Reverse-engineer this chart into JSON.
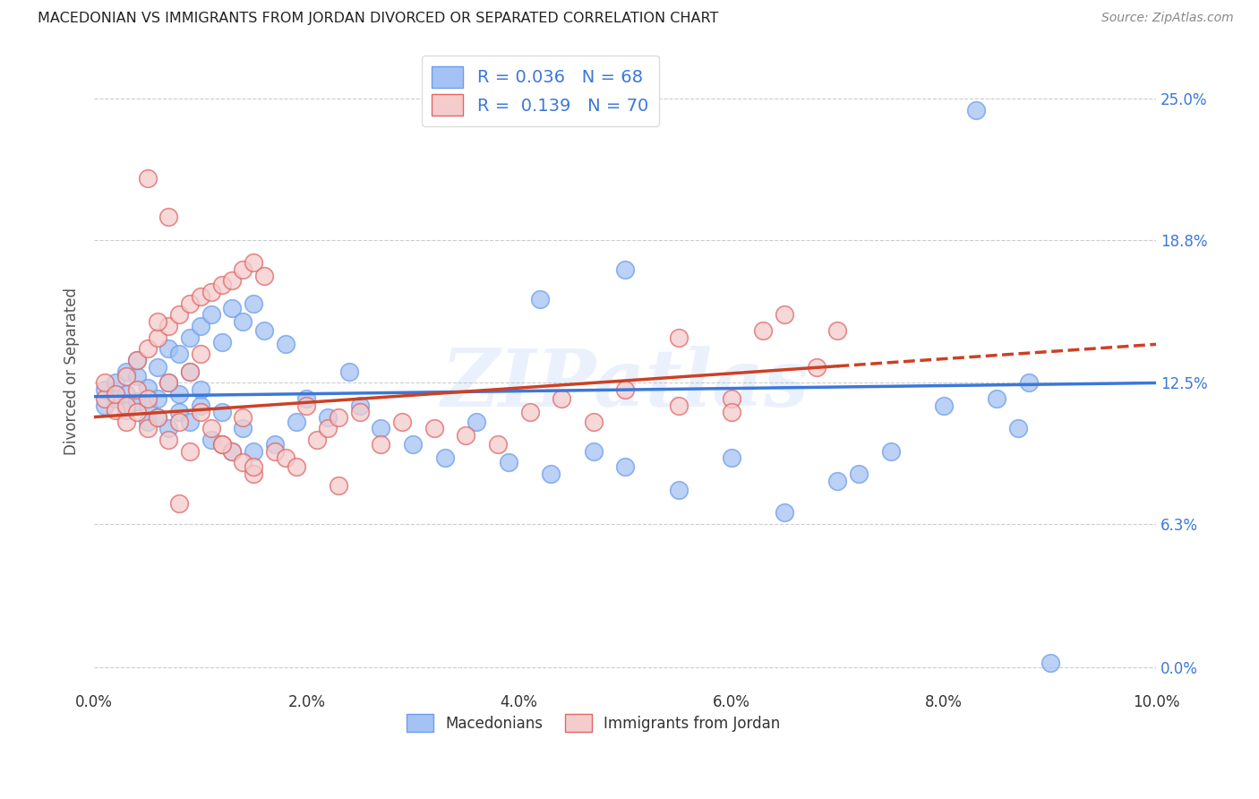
{
  "title": "MACEDONIAN VS IMMIGRANTS FROM JORDAN DIVORCED OR SEPARATED CORRELATION CHART",
  "source": "Source: ZipAtlas.com",
  "ylabel_label": "Divorced or Separated",
  "xlim": [
    0.0,
    0.1
  ],
  "ylim": [
    -0.01,
    0.27
  ],
  "macedonian_color": "#a4c2f4",
  "jordan_color": "#f4cccc",
  "macedonian_edge_color": "#6d9eeb",
  "jordan_edge_color": "#e06666",
  "macedonian_line_color": "#3c78d8",
  "jordan_line_color": "#cc4125",
  "R_macedonian": "0.036",
  "N_macedonian": "68",
  "R_jordan": "0.139",
  "N_jordan": "70",
  "legend_label_macedonian": "Macedonians",
  "legend_label_jordan": "Immigrants from Jordan",
  "watermark": "ZIPatlas",
  "ytick_vals": [
    0.0,
    0.063,
    0.125,
    0.188,
    0.25
  ],
  "ytick_labels": [
    "0.0%",
    "6.3%",
    "12.5%",
    "18.8%",
    "25.0%"
  ],
  "xtick_vals": [
    0.0,
    0.02,
    0.04,
    0.06,
    0.08,
    0.1
  ],
  "xtick_labels": [
    "0.0%",
    "2.0%",
    "4.0%",
    "6.0%",
    "8.0%",
    "10.0%"
  ],
  "macedonian_x": [
    0.001,
    0.001,
    0.002,
    0.002,
    0.003,
    0.003,
    0.003,
    0.004,
    0.004,
    0.004,
    0.005,
    0.005,
    0.005,
    0.006,
    0.006,
    0.006,
    0.007,
    0.007,
    0.007,
    0.008,
    0.008,
    0.008,
    0.009,
    0.009,
    0.009,
    0.01,
    0.01,
    0.01,
    0.011,
    0.011,
    0.012,
    0.012,
    0.013,
    0.013,
    0.014,
    0.014,
    0.015,
    0.015,
    0.016,
    0.017,
    0.018,
    0.019,
    0.02,
    0.022,
    0.024,
    0.025,
    0.027,
    0.03,
    0.033,
    0.036,
    0.039,
    0.043,
    0.047,
    0.05,
    0.055,
    0.06,
    0.065,
    0.07,
    0.072,
    0.075,
    0.08,
    0.083,
    0.085,
    0.087,
    0.088,
    0.09,
    0.042,
    0.05
  ],
  "macedonian_y": [
    0.115,
    0.122,
    0.118,
    0.125,
    0.13,
    0.12,
    0.113,
    0.128,
    0.117,
    0.135,
    0.123,
    0.115,
    0.108,
    0.132,
    0.118,
    0.11,
    0.14,
    0.125,
    0.105,
    0.138,
    0.12,
    0.112,
    0.145,
    0.13,
    0.108,
    0.15,
    0.122,
    0.115,
    0.155,
    0.1,
    0.143,
    0.112,
    0.158,
    0.095,
    0.152,
    0.105,
    0.16,
    0.095,
    0.148,
    0.098,
    0.142,
    0.108,
    0.118,
    0.11,
    0.13,
    0.115,
    0.105,
    0.098,
    0.092,
    0.108,
    0.09,
    0.085,
    0.095,
    0.088,
    0.078,
    0.092,
    0.068,
    0.082,
    0.085,
    0.095,
    0.115,
    0.245,
    0.118,
    0.105,
    0.125,
    0.002,
    0.162,
    0.175
  ],
  "jordan_x": [
    0.001,
    0.001,
    0.002,
    0.002,
    0.003,
    0.003,
    0.003,
    0.004,
    0.004,
    0.004,
    0.005,
    0.005,
    0.005,
    0.006,
    0.006,
    0.007,
    0.007,
    0.007,
    0.008,
    0.008,
    0.009,
    0.009,
    0.009,
    0.01,
    0.01,
    0.011,
    0.011,
    0.012,
    0.012,
    0.013,
    0.013,
    0.014,
    0.014,
    0.015,
    0.015,
    0.016,
    0.017,
    0.018,
    0.019,
    0.02,
    0.021,
    0.022,
    0.023,
    0.025,
    0.027,
    0.029,
    0.032,
    0.035,
    0.038,
    0.041,
    0.044,
    0.047,
    0.05,
    0.055,
    0.06,
    0.063,
    0.065,
    0.068,
    0.07,
    0.06,
    0.055,
    0.023,
    0.015,
    0.005,
    0.007,
    0.006,
    0.008,
    0.01,
    0.012,
    0.014
  ],
  "jordan_y": [
    0.118,
    0.125,
    0.113,
    0.12,
    0.128,
    0.115,
    0.108,
    0.135,
    0.122,
    0.112,
    0.14,
    0.118,
    0.105,
    0.145,
    0.11,
    0.15,
    0.125,
    0.1,
    0.155,
    0.108,
    0.16,
    0.13,
    0.095,
    0.163,
    0.112,
    0.165,
    0.105,
    0.168,
    0.098,
    0.17,
    0.095,
    0.175,
    0.09,
    0.178,
    0.085,
    0.172,
    0.095,
    0.092,
    0.088,
    0.115,
    0.1,
    0.105,
    0.11,
    0.112,
    0.098,
    0.108,
    0.105,
    0.102,
    0.098,
    0.112,
    0.118,
    0.108,
    0.122,
    0.115,
    0.118,
    0.148,
    0.155,
    0.132,
    0.148,
    0.112,
    0.145,
    0.08,
    0.088,
    0.215,
    0.198,
    0.152,
    0.072,
    0.138,
    0.098,
    0.11
  ],
  "mac_line_x0": 0.0,
  "mac_line_y0": 0.119,
  "mac_line_x1": 0.1,
  "mac_line_y1": 0.125,
  "jor_line_x0": 0.0,
  "jor_line_y0": 0.11,
  "jor_line_x1": 0.1,
  "jor_line_y1": 0.142
}
